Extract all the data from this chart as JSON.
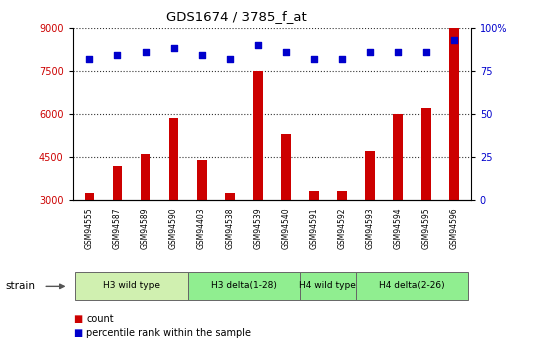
{
  "title": "GDS1674 / 3785_f_at",
  "samples": [
    "GSM94555",
    "GSM94587",
    "GSM94589",
    "GSM94590",
    "GSM94403",
    "GSM94538",
    "GSM94539",
    "GSM94540",
    "GSM94591",
    "GSM94592",
    "GSM94593",
    "GSM94594",
    "GSM94595",
    "GSM94596"
  ],
  "counts": [
    3250,
    4200,
    4600,
    5850,
    4400,
    3250,
    7500,
    5300,
    3300,
    3300,
    4700,
    6000,
    6200,
    9000
  ],
  "percentiles": [
    82,
    84,
    86,
    88,
    84,
    82,
    90,
    86,
    82,
    82,
    86,
    86,
    86,
    93
  ],
  "groups": [
    {
      "label": "H3 wild type",
      "start": 0,
      "end": 3,
      "color": "#d0f0b0"
    },
    {
      "label": "H3 delta(1-28)",
      "start": 4,
      "end": 7,
      "color": "#90ee90"
    },
    {
      "label": "H4 wild type",
      "start": 8,
      "end": 9,
      "color": "#90ee90"
    },
    {
      "label": "H4 delta(2-26)",
      "start": 10,
      "end": 13,
      "color": "#90ee90"
    }
  ],
  "ylim_left": [
    3000,
    9000
  ],
  "ylim_right": [
    0,
    100
  ],
  "yticks_left": [
    3000,
    4500,
    6000,
    7500,
    9000
  ],
  "yticks_right": [
    0,
    25,
    50,
    75,
    100
  ],
  "bar_color": "#cc0000",
  "dot_color": "#0000cc",
  "grid_color": "#333333",
  "bg_color": "#ffffff",
  "tick_area_color": "#c8c8c8",
  "legend_items": [
    "count",
    "percentile rank within the sample"
  ],
  "strain_label": "strain"
}
